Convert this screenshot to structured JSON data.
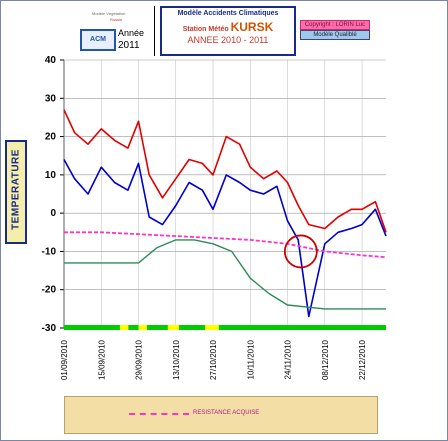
{
  "header": {
    "small_caption_1": "Modèle Végétation",
    "small_caption_2": "Russie",
    "logo_text": "ACM",
    "year_label": "Année",
    "year_value": "2011",
    "title_line1": "Modèle Accidents Climatiques",
    "title_station_prefix": "Station Météo",
    "title_station": "KURSK",
    "title_period": "ANNEE 2010 - 2011",
    "copyright": "Copyright : LORIN Luc",
    "model_label": "Modèle Qualiblé"
  },
  "colors": {
    "max_temp": "#e00000",
    "min_temp": "#0000cc",
    "resistance": "#ff33cc",
    "green_curve": "#2e8b57",
    "markers_green": "#00cc00",
    "markers_yellow": "#ffff00",
    "circle": "#cc0000"
  },
  "chart_data": {
    "type": "line",
    "ylabel": "TEMPERATURE",
    "ylim": [
      -30,
      40
    ],
    "yticks": [
      "40",
      "30",
      "20",
      "10",
      "0",
      "-10",
      "-20",
      "-30"
    ],
    "xlim": [
      "01/09/2010",
      "31/12/2010"
    ],
    "xtick_labels": [
      "01/09/2010",
      "15/09/2010",
      "29/09/2010",
      "13/10/2010",
      "27/10/2010",
      "10/11/2010",
      "24/11/2010",
      "08/12/2010",
      "22/12/2010"
    ],
    "grid": true,
    "legend": {
      "position": "bottom",
      "entries": [
        "RESISTANCE ACQUISE"
      ]
    },
    "series": [
      {
        "key": "max",
        "x": [
          "01/09/2010",
          "05/09/2010",
          "10/09/2010",
          "15/09/2010",
          "20/09/2010",
          "25/09/2010",
          "29/09/2010",
          "03/10/2010",
          "08/10/2010",
          "13/10/2010",
          "18/10/2010",
          "23/10/2010",
          "27/10/2010",
          "01/11/2010",
          "06/11/2010",
          "10/11/2010",
          "15/11/2010",
          "20/11/2010",
          "24/11/2010",
          "28/11/2010",
          "02/12/2010",
          "08/12/2010",
          "13/12/2010",
          "18/12/2010",
          "22/12/2010",
          "27/12/2010",
          "31/12/2010"
        ],
        "y": [
          27,
          21,
          18,
          22,
          19,
          17,
          24,
          10,
          4,
          9,
          14,
          13,
          10,
          20,
          18,
          12,
          9,
          11,
          8,
          2,
          -3,
          -4,
          -1,
          1,
          1,
          3,
          -5
        ]
      },
      {
        "key": "min",
        "x": [
          "01/09/2010",
          "05/09/2010",
          "10/09/2010",
          "15/09/2010",
          "20/09/2010",
          "25/09/2010",
          "29/09/2010",
          "03/10/2010",
          "08/10/2010",
          "13/10/2010",
          "18/10/2010",
          "23/10/2010",
          "27/10/2010",
          "01/11/2010",
          "06/11/2010",
          "10/11/2010",
          "15/11/2010",
          "20/11/2010",
          "24/11/2010",
          "28/11/2010",
          "02/12/2010",
          "08/12/2010",
          "13/12/2010",
          "18/12/2010",
          "22/12/2010",
          "27/12/2010",
          "31/12/2010"
        ],
        "y": [
          14,
          9,
          5,
          12,
          8,
          6,
          13,
          -1,
          -3,
          2,
          8,
          6,
          1,
          10,
          8,
          6,
          5,
          7,
          -2,
          -7,
          -27,
          -8,
          -5,
          -4,
          -3,
          1,
          -6
        ]
      },
      {
        "key": "resistance",
        "name": "RESISTANCE ACQUISE",
        "x": [
          "01/09/2010",
          "15/09/2010",
          "29/09/2010",
          "13/10/2010",
          "27/10/2010",
          "10/11/2010",
          "24/11/2010",
          "08/12/2010",
          "22/12/2010",
          "31/12/2010"
        ],
        "y": [
          -5,
          -5,
          -5.5,
          -6,
          -6.5,
          -7,
          -8,
          -10,
          -11,
          -11.5
        ]
      },
      {
        "key": "green",
        "x": [
          "01/09/2010",
          "15/09/2010",
          "29/09/2010",
          "06/10/2010",
          "13/10/2010",
          "20/10/2010",
          "27/10/2010",
          "03/11/2010",
          "10/11/2010",
          "17/11/2010",
          "24/11/2010",
          "08/12/2010",
          "22/12/2010",
          "31/12/2010"
        ],
        "y": [
          -13,
          -13,
          -13,
          -9,
          -7,
          -7,
          -8,
          -10,
          -17,
          -21,
          -24,
          -25,
          -25,
          -25
        ]
      }
    ]
  }
}
